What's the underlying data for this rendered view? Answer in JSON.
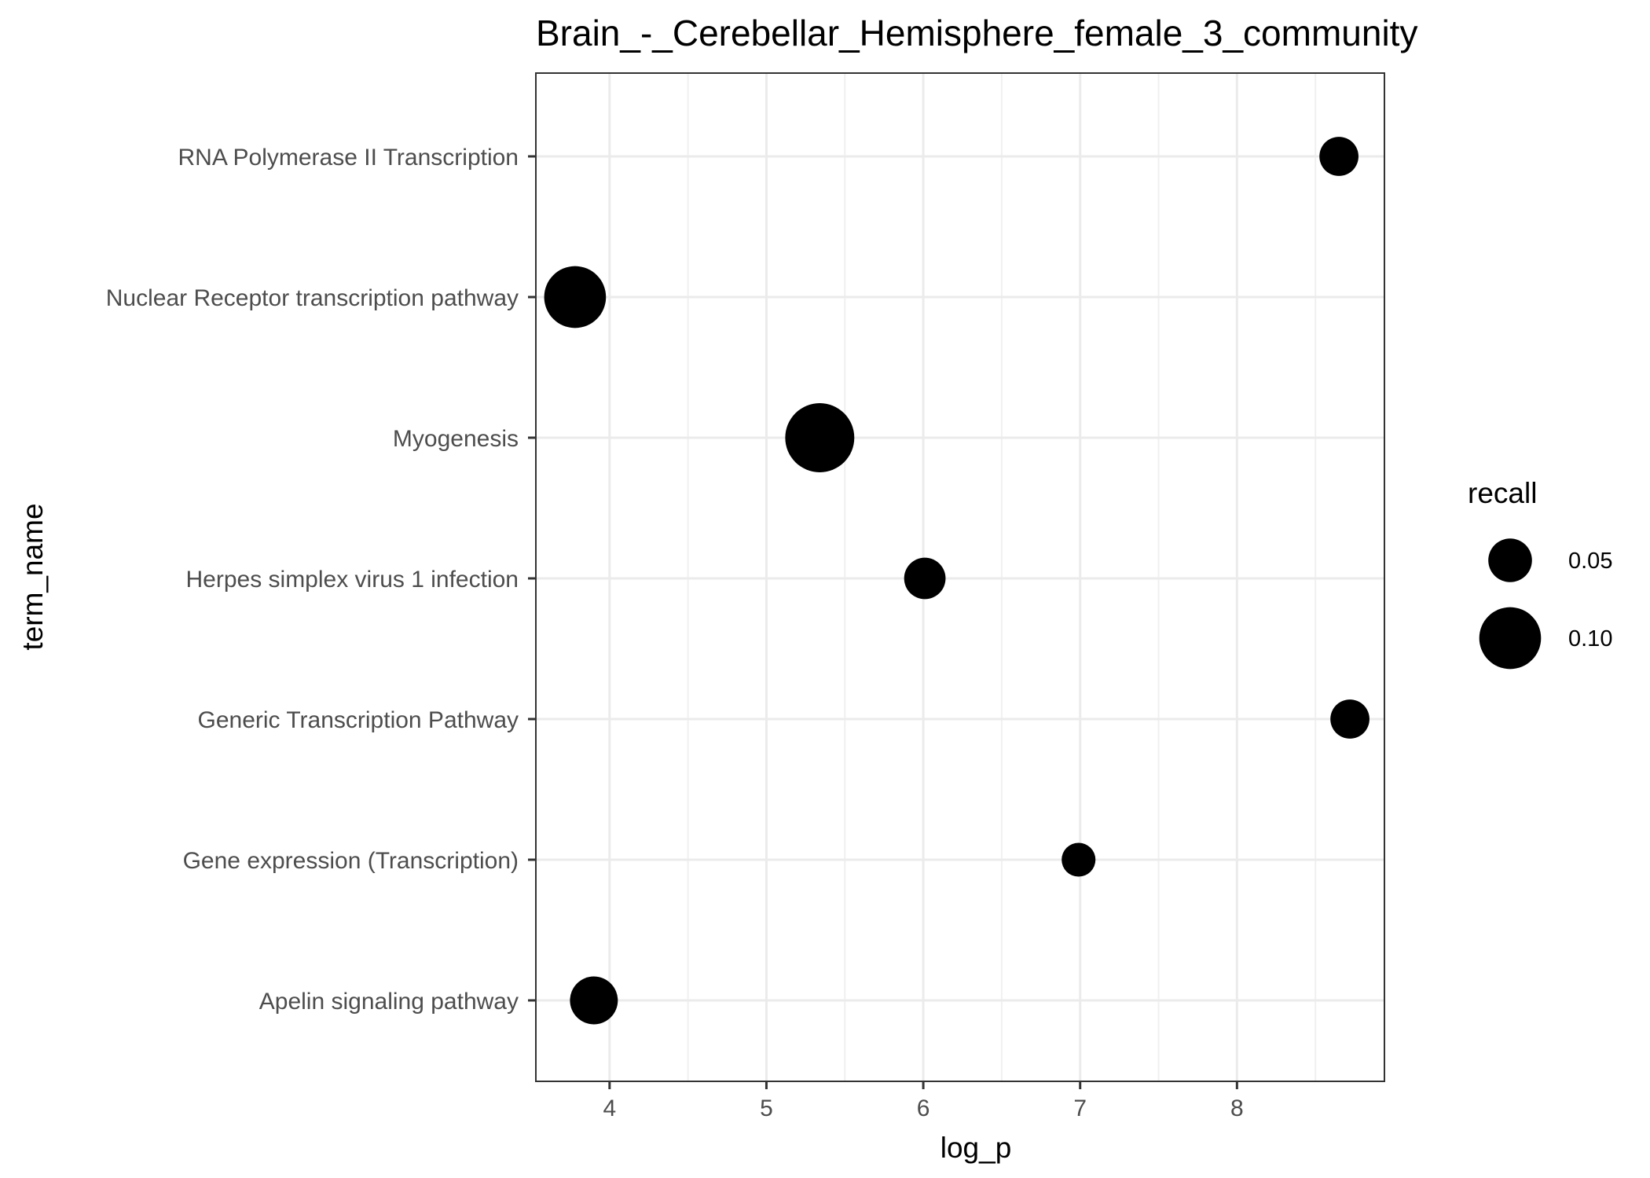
{
  "chart_data": {
    "type": "scatter",
    "title": "Brain_-_Cerebellar_Hemisphere_female_3_community",
    "xlabel": "log_p",
    "ylabel": "term_name",
    "xlim": [
      3.53,
      8.94
    ],
    "x_ticks": [
      4,
      5,
      6,
      7,
      8
    ],
    "categories": [
      "RNA Polymerase II Transcription",
      "Nuclear Receptor transcription pathway",
      "Myogenesis",
      "Herpes simplex virus 1 infection",
      "Generic Transcription Pathway",
      "Gene expression (Transcription)",
      "Apelin signaling pathway"
    ],
    "points": [
      {
        "term": "RNA Polymerase II Transcription",
        "log_p": 8.65,
        "recall": 0.04
      },
      {
        "term": "Nuclear Receptor transcription pathway",
        "log_p": 3.78,
        "recall": 0.1
      },
      {
        "term": "Myogenesis",
        "log_p": 5.34,
        "recall": 0.125
      },
      {
        "term": "Herpes simplex virus 1 infection",
        "log_p": 6.01,
        "recall": 0.045
      },
      {
        "term": "Generic Transcription Pathway",
        "log_p": 8.72,
        "recall": 0.04
      },
      {
        "term": "Gene expression (Transcription)",
        "log_p": 6.99,
        "recall": 0.03
      },
      {
        "term": "Apelin signaling pathway",
        "log_p": 3.9,
        "recall": 0.06
      }
    ],
    "legend": {
      "title": "recall",
      "position": "right",
      "entries": [
        {
          "label": "0.05",
          "value": 0.05
        },
        {
          "label": "0.10",
          "value": 0.1
        }
      ]
    },
    "grid": true,
    "point_color": "#000000"
  }
}
